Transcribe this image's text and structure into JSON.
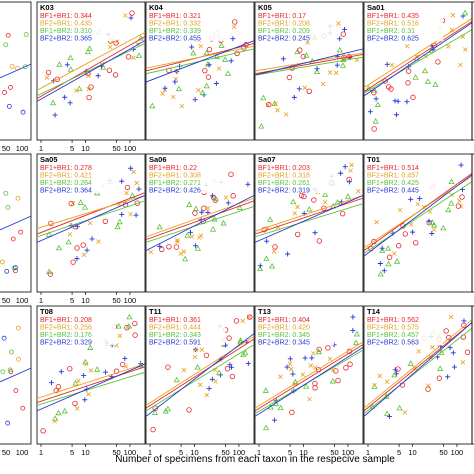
{
  "colors": {
    "br1": "#e8262b",
    "br2": "#e8a21c",
    "br3": "#5bc236",
    "fit": "#2438d6",
    "frame": "#000000"
  },
  "chart_data": {
    "type": "scatter",
    "xlabel": "Number of specimens from each taxon in the respecive sample",
    "x_scale": "log",
    "xlim": [
      1,
      130
    ],
    "legend_placement": "top-left of each panel",
    "panels": [
      {
        "id": "K03",
        "row": 0,
        "col": 1,
        "stats": [
          "BF1+BR1: 0.344",
          "BF2+BR1: 0.435",
          "BF1+BR2: 0.310",
          "BF2+BR2: 0.365"
        ],
        "x_ticks": [
          "1",
          "5",
          "10",
          "50",
          "100"
        ],
        "fit_lines": [
          [
            0.3,
            0.75
          ],
          [
            0.36,
            0.78
          ],
          [
            0.32,
            0.7
          ],
          [
            0.28,
            0.72
          ]
        ]
      },
      {
        "id": "K04",
        "row": 0,
        "col": 2,
        "stats": [
          "BF1+BR1: 0.321",
          "BF2+BR1: 0.332",
          "BF1+BR2: 0.339",
          "BF2+BR2: 0.455"
        ],
        "x_ticks": [],
        "fit_lines": [
          [
            0.5,
            0.7
          ],
          [
            0.52,
            0.68
          ],
          [
            0.48,
            0.66
          ],
          [
            0.42,
            0.72
          ]
        ]
      },
      {
        "id": "K05",
        "row": 0,
        "col": 3,
        "stats": [
          "BF1+BR1: 0.17",
          "BF2+BR1: 0.208",
          "BF1+BR2: 0.209",
          "BF2+BR2: 0.245"
        ],
        "x_ticks": [],
        "fit_lines": [
          [
            0.48,
            0.62
          ],
          [
            0.5,
            0.63
          ],
          [
            0.47,
            0.6
          ],
          [
            0.47,
            0.66
          ]
        ]
      },
      {
        "id": "Sa01",
        "row": 0,
        "col": 4,
        "stats": [
          "BF1+BR1: 0.435",
          "BF2+BR1: 0.516",
          "BF1+BR2: 0.31",
          "BF2+BR2: 0.625"
        ],
        "x_ticks": [],
        "fit_lines": [
          [
            0.35,
            0.86
          ],
          [
            0.38,
            0.88
          ],
          [
            0.34,
            0.8
          ],
          [
            0.32,
            0.85
          ]
        ]
      },
      {
        "id": "Sa05",
        "row": 1,
        "col": 1,
        "stats": [
          "BF1+BR1: 0.278",
          "BF2+BR1: 0.421",
          "BF1+BR2: 0.264",
          "BF2+BR2: 0.364"
        ],
        "x_ticks": [
          "1",
          "5",
          "10",
          "50",
          "100"
        ],
        "fit_lines": [
          [
            0.42,
            0.72
          ],
          [
            0.46,
            0.7
          ],
          [
            0.4,
            0.66
          ],
          [
            0.36,
            0.7
          ]
        ]
      },
      {
        "id": "Sa06",
        "row": 1,
        "col": 2,
        "stats": [
          "BF1+BR1: 0.22",
          "BF2+BR1: 0.308",
          "BF1+BR2: 0.271",
          "BF2+BR2: 0.426"
        ],
        "x_ticks": [],
        "fit_lines": [
          [
            0.38,
            0.66
          ],
          [
            0.4,
            0.68
          ],
          [
            0.36,
            0.62
          ],
          [
            0.3,
            0.7
          ]
        ]
      },
      {
        "id": "Sa07",
        "row": 1,
        "col": 3,
        "stats": [
          "BF1+BR1: 0.203",
          "BF2+BR1: 0.318",
          "BF1+BR2: 0.261",
          "BF2+BR2: 0.319"
        ],
        "x_ticks": [],
        "fit_lines": [
          [
            0.42,
            0.68
          ],
          [
            0.44,
            0.7
          ],
          [
            0.4,
            0.64
          ],
          [
            0.36,
            0.7
          ]
        ]
      },
      {
        "id": "T01",
        "row": 1,
        "col": 4,
        "stats": [
          "BF1+BR1: 0.514",
          "BF2+BR1: 0.457",
          "BF1+BR2: 0.425",
          "BF2+BR2: 0.445"
        ],
        "x_ticks": [],
        "fit_lines": [
          [
            0.3,
            0.86
          ],
          [
            0.32,
            0.84
          ],
          [
            0.28,
            0.8
          ],
          [
            0.26,
            0.85
          ]
        ]
      },
      {
        "id": "T08",
        "row": 2,
        "col": 1,
        "stats": [
          "BF1+BR1: 0.208",
          "BF2+BR1: 0.256",
          "BF1+BR2: 0.176",
          "BF2+BR2: 0.329"
        ],
        "x_ticks": [
          "1",
          "5",
          "10",
          "50",
          "100"
        ],
        "fit_lines": [
          [
            0.3,
            0.56
          ],
          [
            0.33,
            0.58
          ],
          [
            0.28,
            0.52
          ],
          [
            0.24,
            0.58
          ]
        ]
      },
      {
        "id": "T11",
        "row": 2,
        "col": 2,
        "stats": [
          "BF1+BR1: 0.361",
          "BF2+BR1: 0.444",
          "BF1+BR2: 0.343",
          "BF2+BR2: 0.591"
        ],
        "x_ticks": [
          "1",
          "5",
          "10",
          "50",
          "100"
        ],
        "fit_lines": [
          [
            0.26,
            0.76
          ],
          [
            0.28,
            0.78
          ],
          [
            0.24,
            0.72
          ],
          [
            0.2,
            0.8
          ]
        ]
      },
      {
        "id": "T13",
        "row": 2,
        "col": 3,
        "stats": [
          "BF1+BR1: 0.404",
          "BF2+BR1: 0.420",
          "BF1+BR2: 0.345",
          "BF2+BR2: 0.345"
        ],
        "x_ticks": [
          "1",
          "5",
          "10",
          "50",
          "100"
        ],
        "fit_lines": [
          [
            0.24,
            0.72
          ],
          [
            0.26,
            0.74
          ],
          [
            0.22,
            0.68
          ],
          [
            0.2,
            0.7
          ]
        ]
      },
      {
        "id": "T14",
        "row": 2,
        "col": 4,
        "stats": [
          "BF1+BR1: 0.562",
          "BF2+BR1: 0.575",
          "BF1+BR2: 0.457",
          "BF2+BR2: 0.563"
        ],
        "x_ticks": [
          "1",
          "5",
          "10",
          "50",
          "100"
        ],
        "fit_lines": [
          [
            0.24,
            0.88
          ],
          [
            0.26,
            0.9
          ],
          [
            0.22,
            0.84
          ],
          [
            0.2,
            0.88
          ]
        ]
      }
    ],
    "edge_ticks": {
      "left_col": [
        "50",
        "100"
      ],
      "top_left_col": [
        "50",
        "100"
      ],
      "top_row_extra": [
        "5",
        "10"
      ]
    }
  }
}
